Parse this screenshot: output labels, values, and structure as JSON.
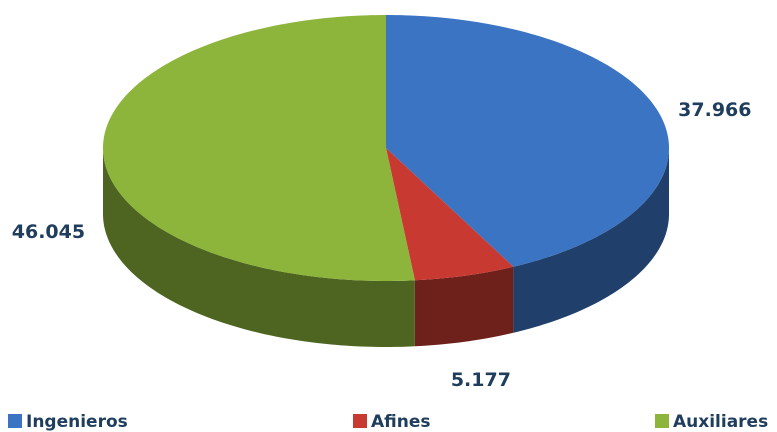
{
  "chart_data": {
    "type": "pie",
    "categories": [
      "Ingenieros",
      "Afines",
      "Auxiliares"
    ],
    "values": [
      37966,
      5177,
      46045
    ],
    "value_labels": [
      "37.966",
      "5.177",
      "46.045"
    ],
    "colors": [
      "#3b74c2",
      "#c83a31",
      "#8db53c"
    ],
    "legend": "bottom"
  }
}
